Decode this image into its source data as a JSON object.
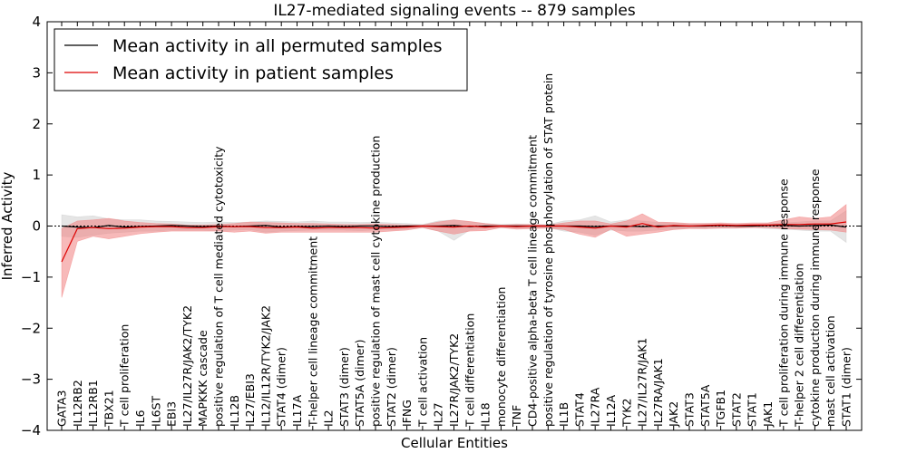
{
  "chart_data": {
    "type": "line",
    "title": "IL27-mediated signaling events -- 879 samples",
    "xlabel": "Cellular Entities",
    "ylabel": "Inferred Activity",
    "ylim": [
      -4,
      4
    ],
    "yticks": [
      "4",
      "3",
      "2",
      "1",
      "0",
      "−1",
      "−2",
      "−3",
      "−4"
    ],
    "categories": [
      "GATA3",
      "IL12RB2",
      "IL12RB1",
      "TBX21",
      "T cell proliferation",
      "IL6",
      "IL6ST",
      "EBI3",
      "IL27/IL27R/JAK2/TYK2",
      "MAPKKK cascade",
      "positive regulation of T cell mediated cytotoxicity",
      "IL12B",
      "IL27/EBI3",
      "IL12/IL12R/TYK2/JAK2",
      "STAT4 (dimer)",
      "IL17A",
      "T-helper cell lineage commitment",
      "IL2",
      "STAT3 (dimer)",
      "STAT5A (dimer)",
      "positive regulation of mast cell cytokine production",
      "STAT2 (dimer)",
      "IFNG",
      "T cell activation",
      "IL27",
      "IL27R/JAK2/TYK2",
      "T cell differentiation",
      "IL18",
      "monocyte differentiation",
      "TNF",
      "CD4-positive alpha-beta T cell lineage commitment",
      "positive regulation of tyrosine phosphorylation of STAT protein",
      "IL1B",
      "STAT4",
      "IL27RA",
      "IL12A",
      "TYK2",
      "IL27/IL27R/JAK1",
      "IL27RA/JAK1",
      "JAK2",
      "STAT3",
      "STAT5A",
      "TGFB1",
      "STAT2",
      "STAT1",
      "JAK1",
      "T cell proliferation during immune response",
      "T-helper 2 cell differentiation",
      "cytokine production during immune response",
      "mast cell activation",
      "STAT1 (dimer)"
    ],
    "series": [
      {
        "name": "Mean activity in all permuted samples",
        "color": "#000000",
        "values": [
          0,
          -0.02,
          -0.03,
          0.01,
          -0.02,
          -0.01,
          0.0,
          0.01,
          0.0,
          -0.01,
          0.0,
          -0.01,
          0.0,
          0.01,
          -0.02,
          -0.01,
          -0.01,
          0.0,
          -0.01,
          0.0,
          0.0,
          -0.01,
          0.0,
          0.0,
          0.0,
          0.01,
          -0.01,
          0.0,
          0.0,
          0.0,
          0.0,
          0.0,
          0.0,
          0.0,
          -0.01,
          0.0,
          0.0,
          -0.01,
          0.0,
          0.0,
          0.0,
          0.0,
          0.01,
          0.0,
          0.0,
          0.01,
          0.01,
          0.0,
          0.01,
          0.02,
          -0.02
        ],
        "upper": [
          0.22,
          0.18,
          0.2,
          0.14,
          0.12,
          0.12,
          0.1,
          0.09,
          0.08,
          0.07,
          0.08,
          0.07,
          0.08,
          0.1,
          0.09,
          0.08,
          0.1,
          0.08,
          0.08,
          0.07,
          0.08,
          0.06,
          0.05,
          0.03,
          0.1,
          0.12,
          0.08,
          0.05,
          0.03,
          0.04,
          0.03,
          0.03,
          0.1,
          0.12,
          0.2,
          0.08,
          0.12,
          0.1,
          0.07,
          0.06,
          0.04,
          0.05,
          0.04,
          0.04,
          0.03,
          0.05,
          0.06,
          0.08,
          0.1,
          0.1,
          0.3
        ],
        "lower": [
          -0.2,
          -0.22,
          -0.18,
          -0.14,
          -0.12,
          -0.1,
          -0.1,
          -0.08,
          -0.08,
          -0.08,
          -0.09,
          -0.08,
          -0.07,
          -0.12,
          -0.1,
          -0.09,
          -0.08,
          -0.08,
          -0.08,
          -0.09,
          -0.08,
          -0.08,
          -0.06,
          -0.03,
          -0.1,
          -0.28,
          -0.08,
          -0.05,
          -0.03,
          -0.04,
          -0.04,
          -0.03,
          -0.1,
          -0.12,
          -0.18,
          -0.08,
          -0.1,
          -0.1,
          -0.08,
          -0.06,
          -0.04,
          -0.05,
          -0.04,
          -0.04,
          -0.03,
          -0.05,
          -0.06,
          -0.08,
          -0.1,
          -0.1,
          -0.32
        ]
      },
      {
        "name": "Mean activity in patient samples",
        "color": "#dd0000",
        "values": [
          -0.7,
          -0.05,
          -0.03,
          -0.05,
          -0.04,
          -0.02,
          -0.01,
          -0.01,
          -0.03,
          -0.03,
          -0.01,
          -0.01,
          -0.01,
          -0.03,
          -0.03,
          -0.02,
          -0.04,
          -0.03,
          -0.03,
          -0.03,
          -0.04,
          -0.03,
          -0.02,
          0.0,
          -0.01,
          -0.02,
          0.0,
          -0.02,
          0.0,
          -0.01,
          0.0,
          0.0,
          0.0,
          -0.02,
          -0.04,
          0.0,
          -0.02,
          0.05,
          -0.02,
          0.01,
          0.0,
          0.01,
          0.02,
          0.01,
          0.02,
          0.02,
          0.03,
          0.03,
          0.04,
          0.04,
          0.08
        ],
        "upper": [
          -0.05,
          0.1,
          0.12,
          0.15,
          0.1,
          0.07,
          0.05,
          0.04,
          0.02,
          0.02,
          0.03,
          0.05,
          0.08,
          0.07,
          0.06,
          0.05,
          0.05,
          0.04,
          0.03,
          0.03,
          0.04,
          0.03,
          0.02,
          0.02,
          0.08,
          0.12,
          0.09,
          0.05,
          0.02,
          0.03,
          0.03,
          0.02,
          0.06,
          0.1,
          0.1,
          0.04,
          0.1,
          0.24,
          0.08,
          0.07,
          0.05,
          0.05,
          0.06,
          0.05,
          0.06,
          0.06,
          0.12,
          0.18,
          0.15,
          0.18,
          0.42
        ],
        "lower": [
          -1.4,
          -0.3,
          -0.2,
          -0.25,
          -0.2,
          -0.15,
          -0.12,
          -0.1,
          -0.1,
          -0.1,
          -0.1,
          -0.12,
          -0.1,
          -0.14,
          -0.12,
          -0.12,
          -0.12,
          -0.12,
          -0.12,
          -0.12,
          -0.12,
          -0.1,
          -0.08,
          -0.03,
          -0.1,
          -0.16,
          -0.1,
          -0.09,
          -0.03,
          -0.06,
          -0.05,
          -0.04,
          -0.07,
          -0.16,
          -0.22,
          -0.06,
          -0.2,
          -0.16,
          -0.12,
          -0.07,
          -0.05,
          -0.05,
          -0.04,
          -0.04,
          -0.03,
          -0.03,
          -0.05,
          -0.06,
          -0.07,
          -0.08,
          -0.12
        ]
      }
    ],
    "zero_line": "dotted",
    "legend": "top-left"
  }
}
